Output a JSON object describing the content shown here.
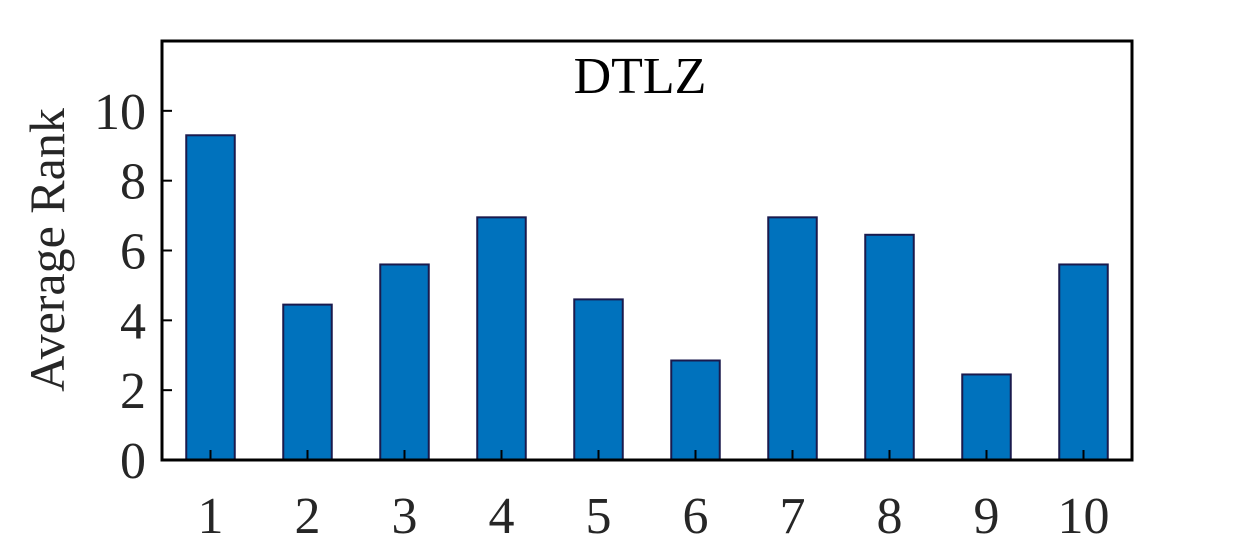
{
  "chart_data": {
    "type": "bar",
    "title": "DTLZ",
    "xlabel": "",
    "ylabel": "Average Rank",
    "categories": [
      "1",
      "2",
      "3",
      "4",
      "5",
      "6",
      "7",
      "8",
      "9",
      "10"
    ],
    "values": [
      9.3,
      4.45,
      5.6,
      6.95,
      4.6,
      2.85,
      6.95,
      6.45,
      2.45,
      5.6
    ],
    "ylim": [
      0,
      12
    ],
    "yticks": [
      "0",
      "2",
      "4",
      "6",
      "8",
      "10"
    ],
    "grid": false,
    "bar_color": "#0072BD",
    "bar_edge_color": "#1a1a4d"
  }
}
